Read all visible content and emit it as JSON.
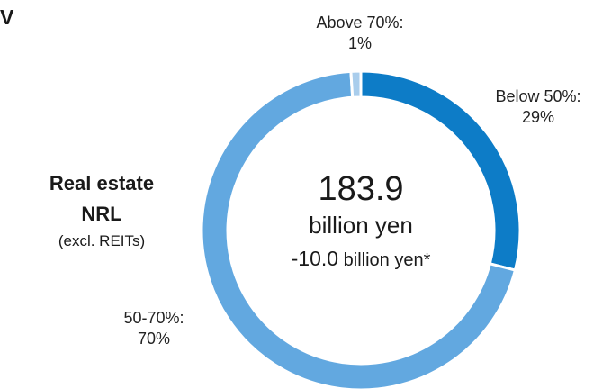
{
  "heading": "TV",
  "side_title": {
    "line1": "Real estate",
    "line2": "NRL",
    "line3": "(excl. REITs)"
  },
  "center": {
    "total": "183.9",
    "unit": "billion yen",
    "delta_value": "-10.0",
    "delta_unit": "billion yen*"
  },
  "labels": {
    "above": {
      "name": "Above 70%:",
      "pct": "1%"
    },
    "below": {
      "name": "Below 50%:",
      "pct": "29%"
    },
    "mid": {
      "name": "50-70%:",
      "pct": "70%"
    }
  },
  "chart_data": {
    "type": "pie",
    "donut": true,
    "categories": [
      "Below 50%",
      "50-70%",
      "Above 70%"
    ],
    "values": [
      29,
      70,
      1
    ],
    "unit": "%",
    "total": 183.9,
    "total_unit": "billion yen",
    "change": -10.0,
    "colors": {
      "Below 50%": "#0d7cc7",
      "50-70%": "#62a8e0",
      "Above 70%": "#a9cdec"
    }
  }
}
